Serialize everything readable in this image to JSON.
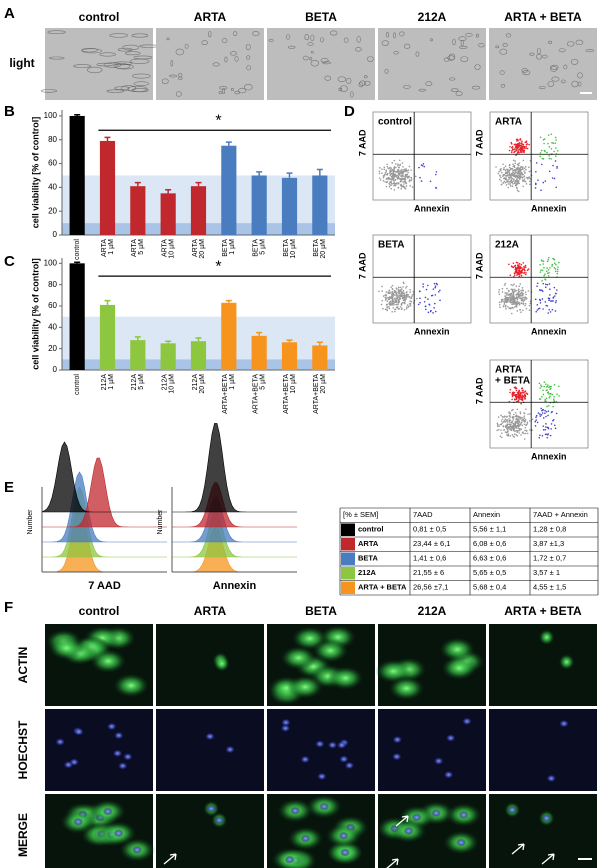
{
  "panel_labels": [
    "A",
    "B",
    "C",
    "D",
    "E",
    "F"
  ],
  "panel_a": {
    "columns": [
      "control",
      "ARTA",
      "BETA",
      "212A",
      "ARTA + BETA"
    ],
    "row_label": "light"
  },
  "panel_b": {
    "type": "bar",
    "ylabel": "cell viability [% of control]",
    "categories": [
      [
        "control"
      ],
      [
        "ARTA",
        "1 µM"
      ],
      [
        "ARTA",
        "5 µM"
      ],
      [
        "ARTA",
        "10 µM"
      ],
      [
        "ARTA",
        "20 µM"
      ],
      [
        "BETA",
        "1 µM"
      ],
      [
        "BETA",
        "5 µM"
      ],
      [
        "BETA",
        "10 µM"
      ],
      [
        "BETA",
        "20 µM"
      ]
    ],
    "values": [
      100,
      79,
      41,
      35,
      41,
      75,
      50,
      48,
      50
    ],
    "errors": [
      1,
      3,
      3,
      3,
      3,
      3,
      3,
      4,
      5
    ],
    "colors": [
      "#000000",
      "#c0282d",
      "#c0282d",
      "#c0282d",
      "#c0282d",
      "#4a7cc0",
      "#4a7cc0",
      "#4a7cc0",
      "#4a7cc0"
    ],
    "ylim": [
      0,
      105
    ],
    "yticks": [
      0,
      20,
      40,
      60,
      80,
      100
    ],
    "significance": "*",
    "bands": [
      {
        "range": [
          10,
          50
        ],
        "color": "#dbe7f4"
      },
      {
        "range": [
          0,
          10
        ],
        "color": "#a9c4e6"
      }
    ]
  },
  "panel_c": {
    "type": "bar",
    "ylabel": "cell viability [% of control]",
    "categories": [
      [
        "control"
      ],
      [
        "212A",
        "1 µM"
      ],
      [
        "212A",
        "5 µM"
      ],
      [
        "212A",
        "10 µM"
      ],
      [
        "212A",
        "20 µM"
      ],
      [
        "ARTA+BETA",
        "1 µM"
      ],
      [
        "ARTA+BETA",
        "5 µM"
      ],
      [
        "ARTA+BETA",
        "10 µM"
      ],
      [
        "ARTA+BETA",
        "20 µM"
      ]
    ],
    "values": [
      100,
      61,
      28,
      25,
      27,
      63,
      32,
      26,
      23
    ],
    "errors": [
      1,
      4,
      3,
      2,
      3,
      2,
      3,
      2,
      3
    ],
    "colors": [
      "#000000",
      "#8dc63f",
      "#8dc63f",
      "#8dc63f",
      "#8dc63f",
      "#f7941d",
      "#f7941d",
      "#f7941d",
      "#f7941d"
    ],
    "ylim": [
      0,
      105
    ],
    "yticks": [
      0,
      20,
      40,
      60,
      80,
      100
    ],
    "significance": "*",
    "bands": [
      {
        "range": [
          10,
          50
        ],
        "color": "#dbe7f4"
      },
      {
        "range": [
          0,
          10
        ],
        "color": "#a9c4e6"
      }
    ]
  },
  "panel_d": {
    "plots": [
      [
        "control"
      ],
      [
        "ARTA"
      ],
      [
        "BETA"
      ],
      [
        "212A"
      ],
      [
        "ARTA",
        "+ BETA"
      ]
    ],
    "ylabel": "7 AAD",
    "xlabel": "Annexin"
  },
  "panel_e": {
    "hist_xlabels": [
      "7 AAD",
      "Annexin"
    ],
    "hist_ylabel": "Number",
    "table": {
      "header": [
        "[% ± SEM]",
        "7AAD",
        "Annexin",
        "7AAD + Annexin"
      ],
      "rows": [
        {
          "label": "control",
          "color": "#000000",
          "cells": [
            "0,81 ± 0,5",
            "5,56 ± 1,1",
            "1,28 ± 0,8"
          ]
        },
        {
          "label": "ARTA",
          "color": "#c0282d",
          "cells": [
            "23,44 ± 6,1",
            "6,08 ± 0,6",
            "3,87 ±1,3"
          ]
        },
        {
          "label": "BETA",
          "color": "#4a7cc0",
          "cells": [
            "1,41 ± 0,6",
            "6,63 ± 0,6",
            "1,72 ± 0,7"
          ]
        },
        {
          "label": "212A",
          "color": "#8dc63f",
          "cells": [
            "21,55 ± 6",
            "5,65 ± 0,5",
            "3,57 ± 1"
          ]
        },
        {
          "label": "ARTA + BETA",
          "color": "#f7941d",
          "cells": [
            "26,56 ±7,1",
            "5,68 ± 0,4",
            "4,55 ± 1,5"
          ]
        }
      ]
    }
  },
  "panel_f": {
    "columns": [
      "control",
      "ARTA",
      "BETA",
      "212A",
      "ARTA + BETA"
    ],
    "rows": [
      "ACTIN",
      "HOECHST",
      "MERGE"
    ]
  }
}
